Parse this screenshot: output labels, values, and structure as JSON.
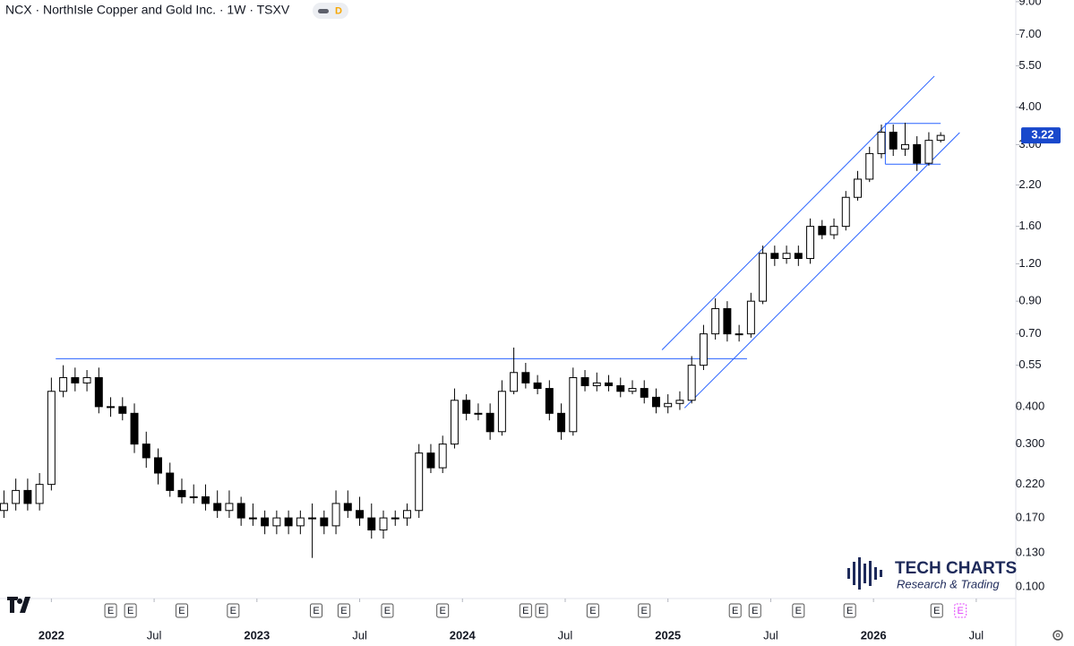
{
  "chart_data": {
    "type": "candlestick",
    "title": "NCX · NorthIsle Copper and Gold Inc. · 1W · TSXV",
    "badge": "D",
    "log_scale": true,
    "up_color": "#ffffff",
    "down_color": "#000000",
    "x": [
      -12,
      -9,
      -6,
      -3,
      0,
      3,
      6,
      9,
      12,
      15,
      18,
      21,
      24,
      27,
      30,
      33,
      36,
      39,
      42,
      45,
      48,
      51,
      54,
      57,
      60,
      63,
      66,
      69,
      72,
      75,
      78,
      81,
      84,
      87,
      90,
      93,
      96,
      99,
      102,
      105,
      108,
      111,
      114,
      117,
      120,
      123,
      126,
      129,
      132,
      135,
      138,
      141,
      144,
      147,
      150,
      153,
      156,
      159,
      162,
      165,
      168,
      171,
      174,
      177,
      180,
      183,
      186,
      189,
      192,
      195,
      198,
      201,
      204,
      207,
      210,
      213,
      216,
      219,
      222,
      225
    ],
    "open": [
      0.18,
      0.19,
      0.21,
      0.19,
      0.22,
      0.45,
      0.5,
      0.48,
      0.5,
      0.4,
      0.4,
      0.38,
      0.3,
      0.27,
      0.24,
      0.21,
      0.2,
      0.2,
      0.19,
      0.18,
      0.19,
      0.17,
      0.17,
      0.16,
      0.17,
      0.16,
      0.17,
      0.17,
      0.16,
      0.19,
      0.18,
      0.17,
      0.155,
      0.17,
      0.17,
      0.18,
      0.28,
      0.25,
      0.3,
      0.42,
      0.38,
      0.38,
      0.33,
      0.45,
      0.52,
      0.48,
      0.46,
      0.38,
      0.33,
      0.5,
      0.47,
      0.48,
      0.47,
      0.45,
      0.46,
      0.43,
      0.4,
      0.41,
      0.42,
      0.55,
      0.7,
      0.85,
      0.7,
      0.7,
      0.9,
      1.3,
      1.25,
      1.3,
      1.25,
      1.6,
      1.5,
      1.6,
      2.0,
      2.3,
      2.8,
      3.3,
      2.9,
      3.0,
      2.6,
      3.1
    ],
    "high": [
      0.21,
      0.23,
      0.23,
      0.24,
      0.5,
      0.55,
      0.54,
      0.53,
      0.54,
      0.43,
      0.43,
      0.41,
      0.33,
      0.29,
      0.26,
      0.23,
      0.22,
      0.22,
      0.21,
      0.21,
      0.2,
      0.19,
      0.18,
      0.18,
      0.18,
      0.18,
      0.19,
      0.18,
      0.21,
      0.21,
      0.2,
      0.19,
      0.18,
      0.18,
      0.19,
      0.3,
      0.3,
      0.32,
      0.46,
      0.44,
      0.41,
      0.41,
      0.49,
      0.63,
      0.56,
      0.51,
      0.49,
      0.41,
      0.54,
      0.53,
      0.52,
      0.51,
      0.5,
      0.49,
      0.49,
      0.46,
      0.44,
      0.45,
      0.59,
      0.75,
      0.92,
      0.9,
      0.75,
      0.96,
      1.38,
      1.38,
      1.38,
      1.38,
      1.7,
      1.68,
      1.7,
      2.1,
      2.45,
      2.95,
      3.5,
      3.5,
      3.55,
      3.2,
      3.3,
      3.3
    ],
    "low": [
      0.17,
      0.18,
      0.18,
      0.18,
      0.21,
      0.43,
      0.45,
      0.45,
      0.38,
      0.37,
      0.36,
      0.28,
      0.25,
      0.22,
      0.2,
      0.19,
      0.19,
      0.18,
      0.17,
      0.17,
      0.16,
      0.16,
      0.15,
      0.15,
      0.15,
      0.15,
      0.125,
      0.15,
      0.15,
      0.17,
      0.16,
      0.145,
      0.145,
      0.16,
      0.16,
      0.17,
      0.24,
      0.24,
      0.29,
      0.36,
      0.36,
      0.31,
      0.32,
      0.44,
      0.46,
      0.44,
      0.36,
      0.31,
      0.32,
      0.45,
      0.45,
      0.45,
      0.43,
      0.44,
      0.41,
      0.38,
      0.38,
      0.39,
      0.41,
      0.53,
      0.67,
      0.66,
      0.66,
      0.68,
      0.88,
      1.18,
      1.2,
      1.18,
      1.2,
      1.45,
      1.45,
      1.55,
      1.95,
      2.25,
      2.7,
      2.75,
      2.75,
      2.45,
      2.55,
      3.05
    ],
    "close": [
      0.19,
      0.21,
      0.19,
      0.22,
      0.45,
      0.5,
      0.48,
      0.5,
      0.4,
      0.4,
      0.38,
      0.3,
      0.27,
      0.24,
      0.21,
      0.2,
      0.2,
      0.19,
      0.18,
      0.19,
      0.17,
      0.17,
      0.16,
      0.17,
      0.16,
      0.17,
      0.17,
      0.16,
      0.19,
      0.18,
      0.17,
      0.155,
      0.17,
      0.17,
      0.18,
      0.28,
      0.25,
      0.3,
      0.42,
      0.38,
      0.38,
      0.33,
      0.45,
      0.52,
      0.48,
      0.46,
      0.38,
      0.33,
      0.5,
      0.47,
      0.48,
      0.47,
      0.45,
      0.46,
      0.43,
      0.4,
      0.41,
      0.42,
      0.55,
      0.7,
      0.85,
      0.7,
      0.7,
      0.9,
      1.3,
      1.25,
      1.3,
      1.25,
      1.6,
      1.5,
      1.6,
      2.0,
      2.3,
      2.8,
      3.3,
      2.9,
      3.0,
      2.6,
      3.1,
      3.22
    ],
    "last_price": 3.22,
    "last_price_color": "#1848cc",
    "xlim": [
      -13,
      244
    ],
    "ylim": [
      0.0934,
      9.12
    ],
    "xticks": [
      {
        "value": 0,
        "label": "2022"
      },
      {
        "value": 26,
        "label": "Jul"
      },
      {
        "value": 52,
        "label": "2023"
      },
      {
        "value": 78,
        "label": "Jul"
      },
      {
        "value": 104,
        "label": "2024"
      },
      {
        "value": 130,
        "label": "Jul"
      },
      {
        "value": 156,
        "label": "2025"
      },
      {
        "value": 182,
        "label": "Jul"
      },
      {
        "value": 208,
        "label": "2026"
      },
      {
        "value": 234,
        "label": "Jul"
      }
    ],
    "yticks": [
      {
        "value": 9,
        "label": "9.00"
      },
      {
        "value": 7,
        "label": "7.00"
      },
      {
        "value": 5.5,
        "label": "5.50"
      },
      {
        "value": 4,
        "label": "4.00"
      },
      {
        "value": 3,
        "label": "3.00"
      },
      {
        "value": 2.2,
        "label": "2.20"
      },
      {
        "value": 1.6,
        "label": "1.60"
      },
      {
        "value": 1.2,
        "label": "1.20"
      },
      {
        "value": 0.9,
        "label": "0.90"
      },
      {
        "value": 0.7,
        "label": "0.70"
      },
      {
        "value": 0.55,
        "label": "0.55"
      },
      {
        "value": 0.4,
        "label": "0.400"
      },
      {
        "value": 0.3,
        "label": "0.300"
      },
      {
        "value": 0.22,
        "label": "0.220"
      },
      {
        "value": 0.17,
        "label": "0.170"
      },
      {
        "value": 0.13,
        "label": "0.130"
      },
      {
        "value": 0.1,
        "label": "0.100"
      }
    ],
    "trendline_color": "#2962ff",
    "trendlines": [
      {
        "x": [
          1.1,
          176
        ],
        "y": [
          0.578,
          0.578
        ]
      },
      {
        "x": [
          154.5,
          223.4
        ],
        "y": [
          0.619,
          5.08
        ]
      },
      {
        "x": [
          160.2,
          229.8
        ],
        "y": [
          0.396,
          3.29
        ]
      },
      {
        "x": [
          211,
          225
        ],
        "y": [
          3.53,
          3.53
        ]
      },
      {
        "x": [
          211,
          225
        ],
        "y": [
          2.58,
          2.58
        ]
      },
      {
        "x": [
          211,
          211
        ],
        "y": [
          2.58,
          3.53
        ]
      }
    ],
    "events": {
      "label": "E",
      "x": [
        15,
        20,
        33,
        46,
        67,
        74,
        85,
        99,
        120,
        124,
        137,
        150,
        173,
        178,
        189,
        202,
        224,
        230
      ]
    },
    "logo": {
      "title": "TECH CHARTS",
      "subtitle": "Research & Trading"
    }
  }
}
